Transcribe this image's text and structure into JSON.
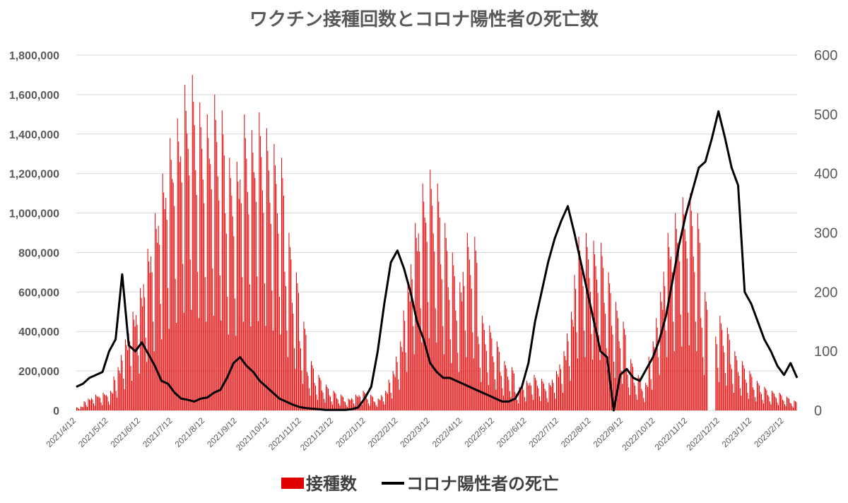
{
  "chart_data": {
    "type": "bar+line",
    "title": "ワクチン接種回数とコロナ陽性者の死亡数",
    "left_axis": {
      "ylim": [
        0,
        1800000
      ],
      "ticks": [
        "0",
        "200,000",
        "400,000",
        "600,000",
        "800,000",
        "1,000,000",
        "1,200,000",
        "1,400,000",
        "1,600,000",
        "1,800,000"
      ]
    },
    "right_axis": {
      "ylim": [
        0,
        600
      ],
      "ticks": [
        "0",
        "100",
        "200",
        "300",
        "400",
        "500",
        "600"
      ]
    },
    "x_tick_labels": [
      "2021/4/12",
      "2021/5/12",
      "2021/6/12",
      "2021/7/12",
      "2021/8/12",
      "2021/9/12",
      "2021/10/12",
      "2021/11/12",
      "2021/12/12",
      "2022/1/12",
      "2022/2/12",
      "2022/3/12",
      "2022/4/12",
      "2022/5/12",
      "2022/6/12",
      "2022/7/12",
      "2022/8/12",
      "2022/9/12",
      "2022/10/12",
      "2022/11/12",
      "2022/12/12",
      "2023/1/12",
      "2023/2/12"
    ],
    "start_date": "2021/4/12",
    "series": [
      {
        "name": "接種数",
        "type": "bar",
        "axis": "left",
        "color": "#e00000",
        "weekly_peak_values": [
          20000,
          60000,
          80000,
          90000,
          100000,
          220000,
          360000,
          500000,
          620000,
          820000,
          1000000,
          1200000,
          1380000,
          1480000,
          1650000,
          1700000,
          1560000,
          1500000,
          1600000,
          1520000,
          1280000,
          1260000,
          1500000,
          1420000,
          1510000,
          1430000,
          1350000,
          1280000,
          900000,
          700000,
          450000,
          250000,
          180000,
          130000,
          100000,
          80000,
          60000,
          80000,
          100000,
          80000,
          60000,
          100000,
          200000,
          350000,
          650000,
          950000,
          1150000,
          1220000,
          1150000,
          950000,
          800000,
          650000,
          900000,
          880000,
          480000,
          430000,
          350000,
          250000,
          220000,
          120000,
          150000,
          180000,
          160000,
          140000,
          200000,
          300000,
          500000,
          880000,
          900000,
          860000,
          850000,
          700000,
          550000,
          450000,
          260000,
          180000,
          140000,
          350000,
          600000,
          900000,
          1000000,
          1080000,
          1100000,
          1000000,
          600000,
          0,
          480000,
          420000,
          300000,
          250000,
          200000,
          150000,
          120000,
          100000,
          90000,
          70000,
          50000
        ]
      },
      {
        "name": "コロナ陽性者の死亡",
        "type": "line",
        "axis": "right",
        "color": "#000000",
        "weekly_values": [
          40,
          45,
          55,
          60,
          65,
          100,
          120,
          230,
          110,
          100,
          115,
          95,
          75,
          50,
          45,
          30,
          20,
          18,
          15,
          20,
          22,
          30,
          35,
          55,
          80,
          90,
          75,
          65,
          50,
          40,
          30,
          20,
          15,
          10,
          6,
          4,
          3,
          2,
          1,
          1,
          1,
          1,
          2,
          5,
          20,
          40,
          100,
          180,
          250,
          270,
          240,
          200,
          150,
          120,
          80,
          65,
          55,
          55,
          50,
          45,
          40,
          35,
          30,
          25,
          20,
          15,
          15,
          20,
          40,
          80,
          150,
          200,
          250,
          290,
          320,
          345,
          300,
          250,
          200,
          150,
          100,
          90,
          0,
          60,
          70,
          55,
          50,
          70,
          90,
          120,
          160,
          220,
          280,
          330,
          370,
          410,
          420,
          460,
          505,
          460,
          410,
          380,
          200,
          180,
          150,
          120,
          100,
          75,
          60,
          80,
          55
        ]
      }
    ],
    "legend": [
      {
        "label": "接種数",
        "color": "#e00000",
        "marker": "box"
      },
      {
        "label": "コロナ陽性者の死亡",
        "color": "#000000",
        "marker": "line"
      }
    ],
    "legend_position": "bottom-center",
    "grid": true
  }
}
